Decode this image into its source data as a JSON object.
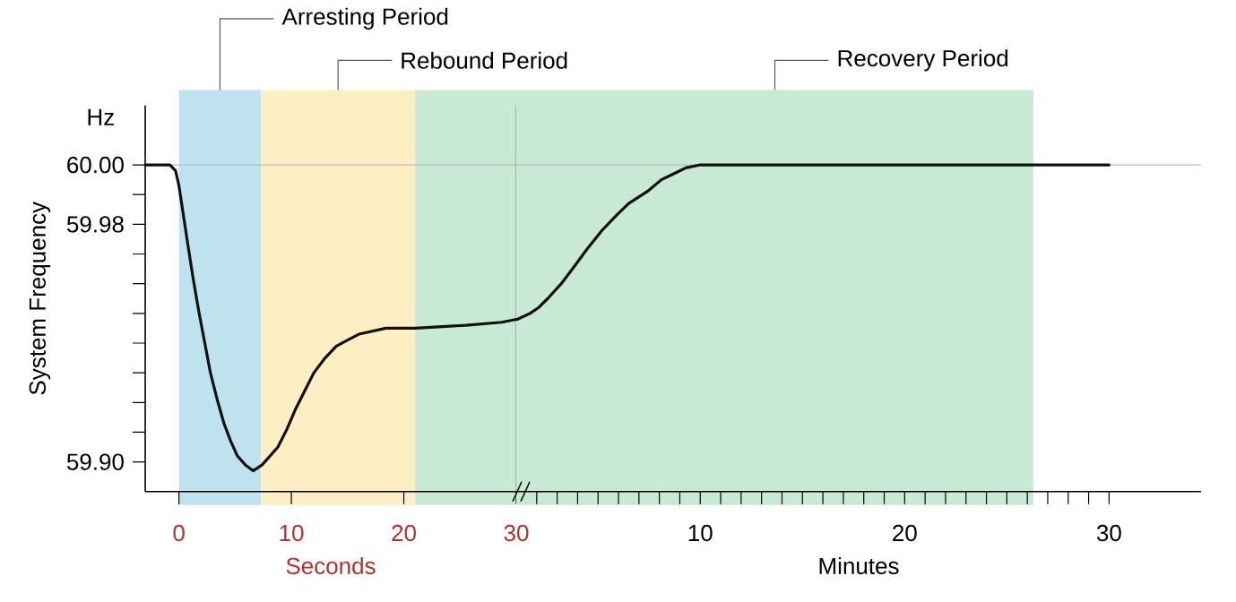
{
  "chart_data": [
    {
      "type": "line",
      "xlabel": "Seconds",
      "ylabel": "System Frequency",
      "annotations": [
        "Hz"
      ],
      "xlim": [
        -3,
        30
      ],
      "ylim": [
        59.89,
        60.02
      ],
      "xticks": [
        0,
        10,
        20,
        30
      ],
      "yticks": [
        {
          "value": 59.9,
          "label": "59.90"
        },
        {
          "value": 59.91,
          "label": null
        },
        {
          "value": 59.92,
          "label": null
        },
        {
          "value": 59.93,
          "label": null
        },
        {
          "value": 59.94,
          "label": null
        },
        {
          "value": 59.95,
          "label": null
        },
        {
          "value": 59.96,
          "label": null
        },
        {
          "value": 59.97,
          "label": null
        },
        {
          "value": 59.98,
          "label": "59.98"
        },
        {
          "value": 59.99,
          "label": null
        },
        {
          "value": 60,
          "label": "60.00"
        }
      ],
      "bands": [
        {
          "axis": "x",
          "from": 0,
          "to": 7.3,
          "label": "Arresting Period",
          "color": "#bfe3ee"
        },
        {
          "axis": "x",
          "from": 7.3,
          "to": 21,
          "label": "Rebound Period",
          "color": "#fdeec4"
        },
        {
          "axis": "x",
          "from": 21,
          "to": 30,
          "color": "#c8ead5"
        }
      ],
      "ref_lines": [
        {
          "axis": "y",
          "value": 60,
          "color": "#bbbbbb"
        },
        {
          "axis": "x",
          "value": 30,
          "color": "#888888"
        }
      ],
      "series": [
        {
          "color": "#111111",
          "x": [
            -3,
            -0.8,
            -0.3,
            0,
            0.4,
            0.8,
            1.25,
            1.75,
            2.3,
            2.8,
            3.4,
            4,
            4.6,
            5.2,
            5.9,
            6.6,
            7.4,
            8.1,
            8.8,
            9.6,
            10.4,
            11.2,
            12,
            13,
            14,
            15,
            16,
            18.4,
            21,
            25.5,
            28.7,
            30
          ],
          "values": [
            60,
            60,
            59.998,
            59.993,
            59.983,
            59.973,
            59.962,
            59.951,
            59.94,
            59.93,
            59.921,
            59.913,
            59.907,
            59.902,
            59.899,
            59.897,
            59.899,
            59.902,
            59.905,
            59.911,
            59.918,
            59.924,
            59.93,
            59.935,
            59.939,
            59.941,
            59.943,
            59.945,
            59.945,
            59.946,
            59.947,
            59.948
          ]
        }
      ]
    },
    {
      "type": "line",
      "xlabel": "Minutes",
      "tick_labels": "x",
      "xlim": [
        1,
        34.5
      ],
      "ylim": [
        59.89,
        60.02
      ],
      "xticks": [
        {
          "value": 2,
          "label": null
        },
        {
          "value": 3,
          "label": null
        },
        {
          "value": 4,
          "label": null
        },
        {
          "value": 5,
          "label": null
        },
        {
          "value": 6,
          "label": null
        },
        {
          "value": 7,
          "label": null
        },
        {
          "value": 8,
          "label": null
        },
        {
          "value": 9,
          "label": null
        },
        10,
        {
          "value": 11,
          "label": null
        },
        {
          "value": 12,
          "label": null
        },
        {
          "value": 13,
          "label": null
        },
        {
          "value": 14,
          "label": null
        },
        {
          "value": 15,
          "label": null
        },
        {
          "value": 16,
          "label": null
        },
        {
          "value": 17,
          "label": null
        },
        {
          "value": 18,
          "label": null
        },
        {
          "value": 19,
          "label": null
        },
        20,
        {
          "value": 21,
          "label": null
        },
        {
          "value": 22,
          "label": null
        },
        {
          "value": 23,
          "label": null
        },
        {
          "value": 24,
          "label": null
        },
        {
          "value": 25,
          "label": null
        },
        {
          "value": 26,
          "label": null
        },
        {
          "value": 27,
          "label": null
        },
        {
          "value": 28,
          "label": null
        },
        {
          "value": 29,
          "label": null
        },
        30
      ],
      "bands": [
        {
          "axis": "x",
          "from": 1,
          "to": 26.3,
          "label": "Recovery Period",
          "color": "#c8ead5"
        }
      ],
      "ref_lines": [
        {
          "axis": "y",
          "value": 60,
          "color": "#bbbbbb"
        }
      ],
      "series": [
        {
          "color": "#111111",
          "x": [
            1.05,
            1.67,
            2.1,
            2.54,
            3.2,
            3.86,
            4.5,
            5.2,
            5.9,
            6.5,
            7.4,
            8.1,
            8.7,
            9.3,
            10,
            30
          ],
          "values": [
            59.948,
            59.95,
            59.952,
            59.955,
            59.96,
            59.966,
            59.972,
            59.978,
            59.983,
            59.987,
            59.991,
            59.995,
            59.997,
            59.999,
            60,
            60
          ]
        }
      ]
    }
  ]
}
